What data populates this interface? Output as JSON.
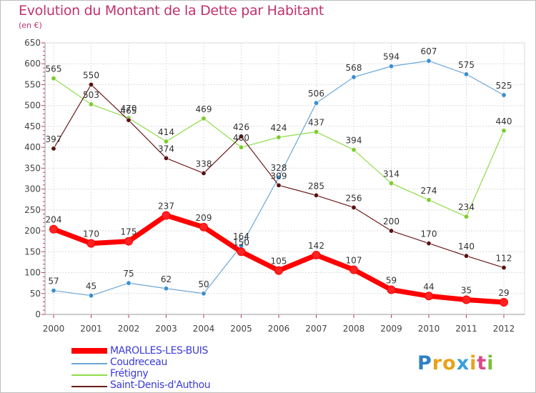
{
  "title": "Evolution du Montant de la Dette par Habitant",
  "subtitle": "(en €)",
  "logo_text": "Proxiti",
  "chart_data": {
    "type": "line",
    "title": "Evolution du Montant de la Dette par Habitant",
    "subtitle": "(en €)",
    "x": [
      "2000",
      "2001",
      "2002",
      "2003",
      "2004",
      "2005",
      "2006",
      "2007",
      "2008",
      "2009",
      "2010",
      "2011",
      "2012"
    ],
    "y_ticks": [
      "0",
      "50",
      "100",
      "150",
      "200",
      "250",
      "300",
      "350",
      "400",
      "450",
      "500",
      "550",
      "600",
      "650"
    ],
    "ylim": [
      0,
      650
    ],
    "grid": true,
    "legend_position": "bottom-left",
    "series": [
      {
        "name": "MAROLLES-LES-BUIS",
        "color": "#ff0000",
        "values": [
          204,
          170,
          175,
          237,
          209,
          150,
          105,
          142,
          107,
          59,
          44,
          35,
          29
        ]
      },
      {
        "name": "Coudreceau",
        "color": "#6ca6d6",
        "values": [
          57,
          45,
          75,
          62,
          50,
          164,
          328,
          506,
          568,
          594,
          607,
          575,
          525
        ]
      },
      {
        "name": "Frétigny",
        "color": "#8fdc4a",
        "values": [
          565,
          503,
          470,
          414,
          469,
          400,
          424,
          437,
          394,
          314,
          274,
          234,
          440
        ]
      },
      {
        "name": "Saint-Denis-d'Authou",
        "color": "#6b1a1a",
        "values": [
          397,
          550,
          465,
          374,
          338,
          426,
          309,
          285,
          256,
          200,
          170,
          140,
          112
        ]
      }
    ]
  }
}
